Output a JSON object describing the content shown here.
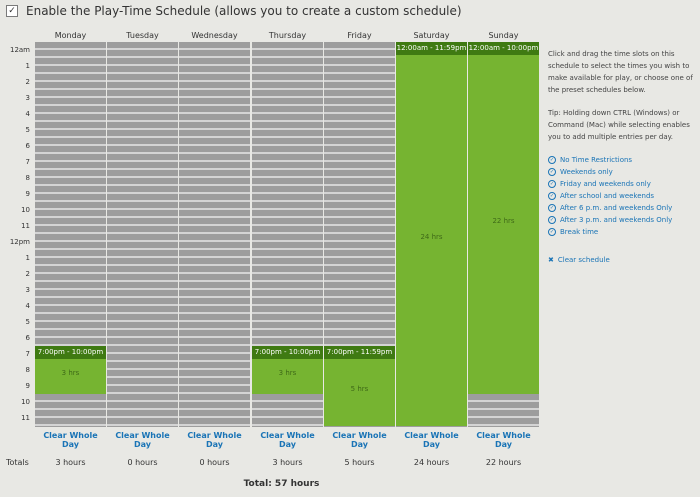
{
  "enable": {
    "checked": true,
    "check_glyph": "✓",
    "label": "Enable the Play-Time Schedule (allows you to create a custom schedule)"
  },
  "hours": [
    "12am",
    "1",
    "2",
    "3",
    "4",
    "5",
    "6",
    "7",
    "8",
    "9",
    "10",
    "11",
    "12pm",
    "1",
    "2",
    "3",
    "4",
    "5",
    "6",
    "7",
    "8",
    "9",
    "10",
    "11"
  ],
  "days": [
    {
      "name": "Monday",
      "blocks": [
        {
          "start": 19,
          "end": 22,
          "time_label": "7:00pm - 10:00pm",
          "hours_label": "3 hrs"
        }
      ],
      "clear_label": "Clear Whole Day",
      "total": "3 hours"
    },
    {
      "name": "Tuesday",
      "blocks": [],
      "clear_label": "Clear Whole Day",
      "total": "0 hours"
    },
    {
      "name": "Wednesday",
      "blocks": [],
      "clear_label": "Clear Whole Day",
      "total": "0 hours"
    },
    {
      "name": "Thursday",
      "blocks": [
        {
          "start": 19,
          "end": 22,
          "time_label": "7:00pm - 10:00pm",
          "hours_label": "3 hrs"
        }
      ],
      "clear_label": "Clear Whole Day",
      "total": "3 hours"
    },
    {
      "name": "Friday",
      "blocks": [
        {
          "start": 19,
          "end": 24,
          "time_label": "7:00pm - 11:59pm",
          "hours_label": "5 hrs"
        }
      ],
      "clear_label": "Clear Whole Day",
      "total": "5 hours"
    },
    {
      "name": "Saturday",
      "blocks": [
        {
          "start": 0,
          "end": 24,
          "time_label": "12:00am - 11:59pm",
          "hours_label": "24 hrs"
        }
      ],
      "clear_label": "Clear Whole Day",
      "total": "24 hours"
    },
    {
      "name": "Sunday",
      "blocks": [
        {
          "start": 0,
          "end": 22,
          "time_label": "12:00am - 10:00pm",
          "hours_label": "22 hrs"
        }
      ],
      "clear_label": "Clear Whole Day",
      "total": "22 hours"
    }
  ],
  "totals_label": "Totals",
  "grand_total": "Total: 57 hours",
  "info": {
    "instructions": "Click and drag the time slots on this schedule to select the times you wish to make available for play, or choose one of the preset schedules below.",
    "tip": "Tip: Holding down CTRL (Windows) or Command (Mac) while selecting enables you to add multiple entries per day."
  },
  "presets": [
    "No Time Restrictions",
    "Weekends only",
    "Friday and weekends only",
    "After school and weekends",
    "After 6 p.m. and weekends Only",
    "After 3 p.m. and weekends Only",
    "Break time"
  ],
  "preset_icon_glyph": "✓",
  "clear_schedule": {
    "label": "Clear schedule",
    "icon_glyph": "✖"
  },
  "colors": {
    "accent_green": "#76b431",
    "dark_green": "#3f7a12",
    "link_blue": "#1a74b6",
    "slot_gray": "#9d9d9d"
  }
}
